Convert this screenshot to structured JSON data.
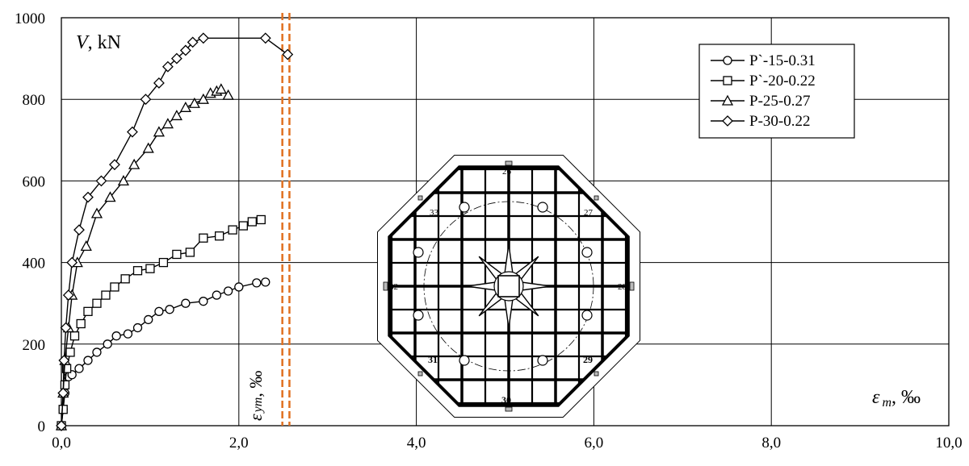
{
  "chart_data": {
    "type": "line",
    "xlim": [
      0,
      10
    ],
    "ylim": [
      0,
      1000
    ],
    "x_ticks": [
      0,
      2,
      4,
      6,
      8,
      10
    ],
    "x_tick_labels": [
      "0,0",
      "2,0",
      "4,0",
      "6,0",
      "8,0",
      "10,0"
    ],
    "y_ticks": [
      0,
      200,
      400,
      600,
      800,
      1000
    ],
    "y_tick_labels": [
      "0",
      "200",
      "400",
      "600",
      "800",
      "1000"
    ],
    "grid": true,
    "legend_position": "top-right",
    "y_label_italic": "V",
    "y_label_rest": ", kN",
    "x_label_symbol": "ε",
    "x_label_sub": "m",
    "x_label_rest": ", ‰",
    "eps_ym_symbol": "ε",
    "eps_ym_sub": "ym",
    "eps_ym_rest": ", ‰",
    "eps_ym_lines": [
      2.49,
      2.57
    ],
    "eps_ym_color": "#e07020",
    "series": [
      {
        "name": "P`-15-0.31",
        "marker": "circle",
        "x": [
          0.0,
          0.02,
          0.04,
          0.08,
          0.12,
          0.2,
          0.3,
          0.4,
          0.52,
          0.62,
          0.75,
          0.86,
          0.98,
          1.1,
          1.22,
          1.4,
          1.6,
          1.75,
          1.88,
          2.0,
          2.2,
          2.3
        ],
        "y": [
          0,
          40,
          80,
          120,
          125,
          140,
          160,
          180,
          200,
          220,
          225,
          240,
          260,
          280,
          285,
          300,
          305,
          320,
          330,
          340,
          350,
          352
        ]
      },
      {
        "name": "P`-20-0.22",
        "marker": "square",
        "x": [
          0.0,
          0.02,
          0.04,
          0.06,
          0.1,
          0.15,
          0.22,
          0.3,
          0.4,
          0.5,
          0.6,
          0.72,
          0.86,
          1.0,
          1.15,
          1.3,
          1.45,
          1.6,
          1.78,
          1.93,
          2.05,
          2.15,
          2.25
        ],
        "y": [
          0,
          40,
          100,
          140,
          180,
          220,
          250,
          280,
          300,
          320,
          340,
          360,
          380,
          385,
          400,
          420,
          425,
          460,
          465,
          480,
          490,
          500,
          505
        ]
      },
      {
        "name": "P-25-0.27",
        "marker": "triangle",
        "x": [
          0.0,
          0.02,
          0.04,
          0.08,
          0.12,
          0.18,
          0.28,
          0.4,
          0.55,
          0.7,
          0.82,
          0.98,
          1.1,
          1.2,
          1.3,
          1.4,
          1.5,
          1.6,
          1.68,
          1.75,
          1.8,
          1.88
        ],
        "y": [
          0,
          80,
          160,
          240,
          320,
          400,
          440,
          520,
          560,
          600,
          640,
          680,
          720,
          740,
          760,
          780,
          790,
          800,
          815,
          820,
          825,
          810
        ]
      },
      {
        "name": "P-30-0.22",
        "marker": "diamond",
        "x": [
          0.0,
          0.02,
          0.03,
          0.05,
          0.08,
          0.12,
          0.2,
          0.3,
          0.45,
          0.6,
          0.8,
          0.95,
          1.1,
          1.2,
          1.3,
          1.4,
          1.48,
          1.6,
          2.3,
          2.55
        ],
        "y": [
          0,
          80,
          160,
          240,
          320,
          400,
          480,
          560,
          600,
          640,
          720,
          800,
          840,
          880,
          900,
          920,
          940,
          950,
          950,
          910
        ]
      }
    ],
    "inset_gauge_labels": {
      "top": "26",
      "top_right": "27",
      "right": "28",
      "bottom_right": "29",
      "bottom": "30",
      "bottom_left": "31",
      "left": "32",
      "top_left": "33"
    }
  }
}
